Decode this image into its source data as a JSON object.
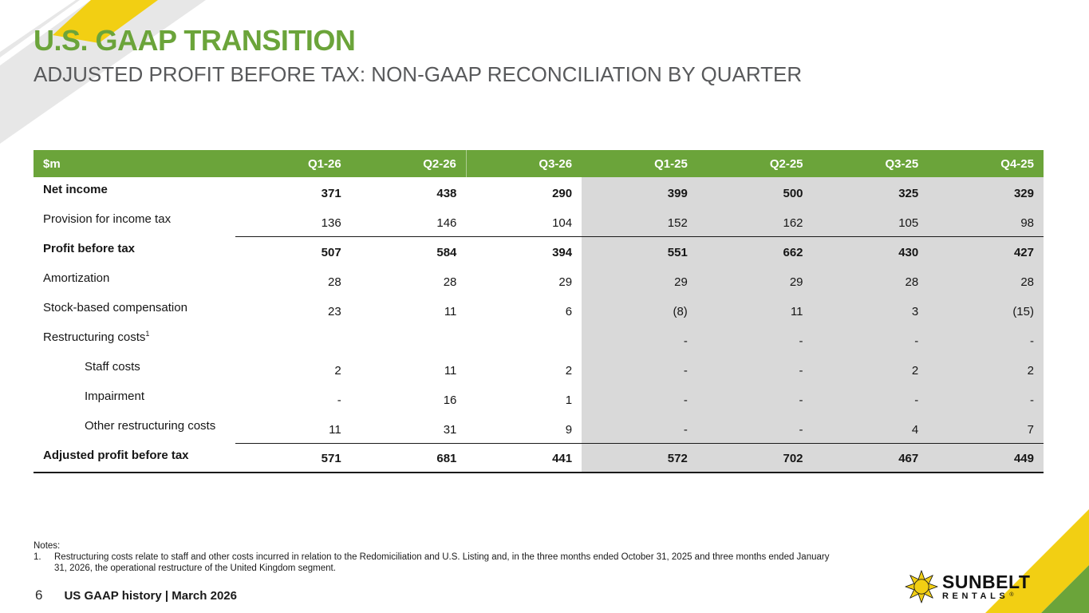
{
  "slide": {
    "title": "U.S. GAAP TRANSITION",
    "subtitle": "ADJUSTED PROFIT BEFORE TAX: NON-GAAP RECONCILIATION BY QUARTER"
  },
  "table": {
    "unit_label": "$m",
    "columns": [
      "Q1-26",
      "Q2-26",
      "Q3-26",
      "Q1-25",
      "Q2-25",
      "Q3-25",
      "Q4-25"
    ],
    "shaded_from_column": "Q1-25",
    "rows": [
      {
        "label": "Net income",
        "bold": true,
        "values": [
          "371",
          "438",
          "290",
          "399",
          "500",
          "325",
          "329"
        ]
      },
      {
        "label": "Provision for income tax",
        "underline": true,
        "values": [
          "136",
          "146",
          "104",
          "152",
          "162",
          "105",
          "98"
        ]
      },
      {
        "label": "Profit before tax",
        "bold": true,
        "values": [
          "507",
          "584",
          "394",
          "551",
          "662",
          "430",
          "427"
        ]
      },
      {
        "label": "Amortization",
        "values": [
          "28",
          "28",
          "29",
          "29",
          "29",
          "28",
          "28"
        ]
      },
      {
        "label": "Stock-based compensation",
        "values": [
          "23",
          "11",
          "6",
          "(8)",
          "11",
          "3",
          "(15)"
        ]
      },
      {
        "label": "Restructuring costs",
        "sup": "1",
        "values": [
          "",
          "",
          "",
          "-",
          "-",
          "-",
          "-"
        ]
      },
      {
        "label": "Staff costs",
        "indent": true,
        "values": [
          "2",
          "11",
          "2",
          "-",
          "-",
          "2",
          "2"
        ]
      },
      {
        "label": "Impairment",
        "indent": true,
        "values": [
          "-",
          "16",
          "1",
          "-",
          "-",
          "-",
          "-"
        ]
      },
      {
        "label": "Other restructuring costs",
        "indent": true,
        "underline": true,
        "values": [
          "11",
          "31",
          "9",
          "-",
          "-",
          "4",
          "7"
        ]
      },
      {
        "label": "Adjusted profit before tax",
        "bold": true,
        "values": [
          "571",
          "681",
          "441",
          "572",
          "702",
          "467",
          "449"
        ]
      }
    ]
  },
  "notes": {
    "heading": "Notes:",
    "items": [
      {
        "number": "1.",
        "text": "Restructuring costs relate to staff and other costs incurred in relation to the Redomiciliation and U.S. Listing and, in the three months ended October 31, 2025 and three months ended January 31, 2026, the operational restructure of the United Kingdom segment."
      }
    ]
  },
  "footer": {
    "page_number": "6",
    "text": "US GAAP history | March 2026"
  },
  "logo": {
    "line1": "SUNBELT",
    "line2": "RENTALS",
    "registered": "®"
  },
  "colors": {
    "green": "#6ba43a",
    "yellow": "#f2cf13",
    "shaded": "#d9d9d9",
    "deco-gray": "#e7e7e7"
  }
}
